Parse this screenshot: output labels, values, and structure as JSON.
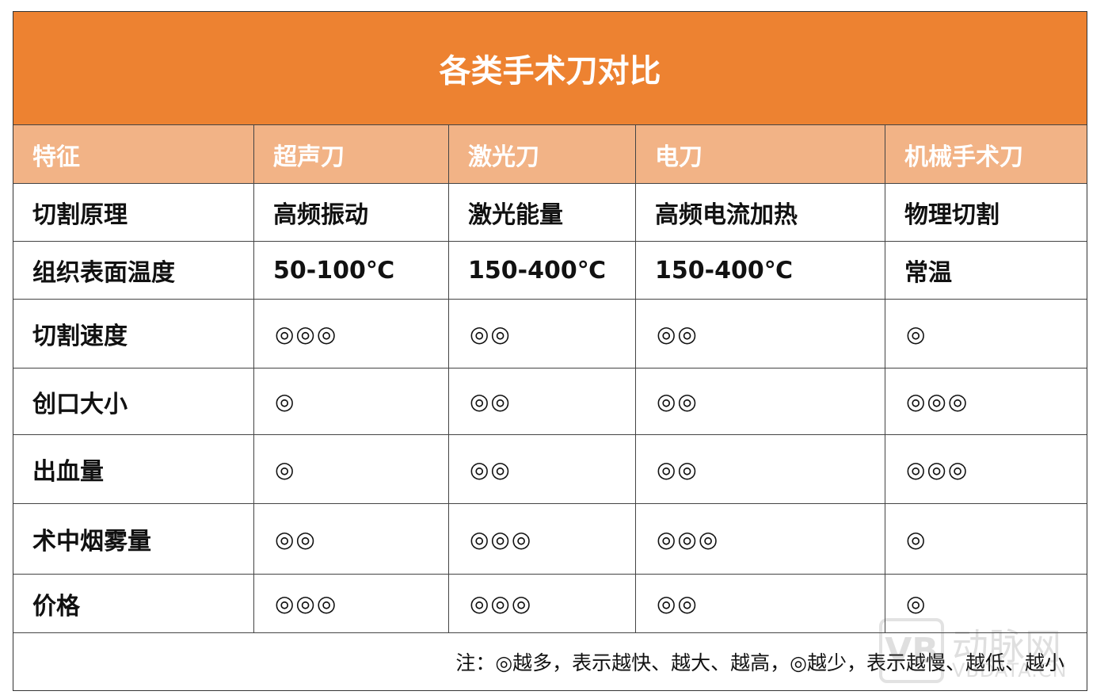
{
  "title": "各类手术刀对比",
  "headers": [
    "特征",
    "超声刀",
    "激光刀",
    "电刀",
    "机械手术刀"
  ],
  "rows": [
    {
      "feature": "切割原理",
      "values": [
        "高频振动",
        "激光能量",
        "高频电流加热",
        "物理切割"
      ]
    },
    {
      "feature": "组织表面温度",
      "values": [
        "50-100℃",
        "150-400℃",
        "150-400℃",
        "常温"
      ]
    },
    {
      "feature": "切割速度",
      "values": [
        "◎◎◎",
        "◎◎",
        "◎◎",
        "◎"
      ]
    },
    {
      "feature": "创口大小",
      "values": [
        "◎",
        "◎◎",
        "◎◎",
        "◎◎◎"
      ]
    },
    {
      "feature": "出血量",
      "values": [
        "◎",
        "◎◎",
        "◎◎",
        "◎◎◎"
      ]
    },
    {
      "feature": "术中烟雾量",
      "values": [
        "◎◎",
        "◎◎◎",
        "◎◎◎",
        "◎"
      ]
    },
    {
      "feature": "价格",
      "values": [
        "◎◎◎",
        "◎◎◎",
        "◎◎",
        "◎"
      ]
    }
  ],
  "note": "注：◎越多，表示越快、越大、越高，◎越少，表示越慢、越低、越小",
  "watermark": {
    "logo": "VB",
    "name": "动脉网",
    "url": "VBDATA.CN"
  },
  "colors": {
    "title_bg": "#ED8231",
    "header_bg": "#F2B386"
  }
}
